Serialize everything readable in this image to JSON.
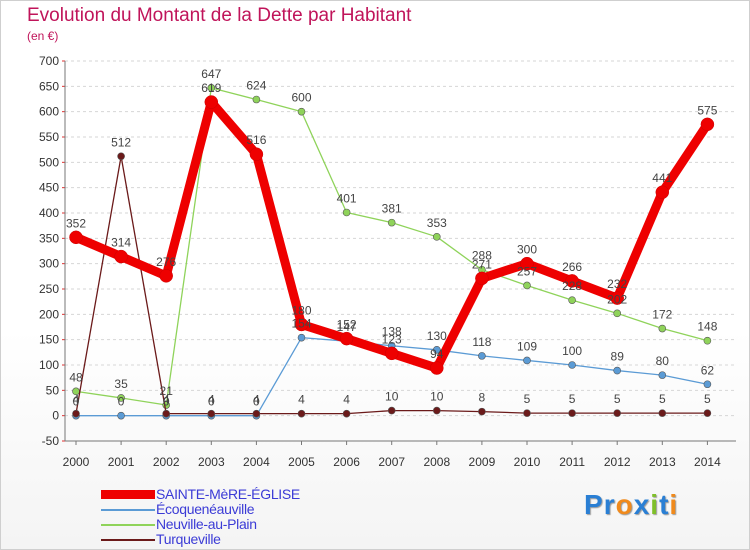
{
  "title": "Evolution du Montant de la Dette par Habitant",
  "subtitle": "(en €)",
  "logo": {
    "text": "Proxiti",
    "letters": [
      "P",
      "r",
      "o",
      "x",
      "i",
      "t",
      "i"
    ],
    "colors": [
      "#2a7fd4",
      "#2a7fd4",
      "#f08a1c",
      "#2a7fd4",
      "#7fbf2a",
      "#2a7fd4",
      "#f08a1c"
    ]
  },
  "chart_data": {
    "type": "line",
    "x": [
      "2000",
      "2001",
      "2002",
      "2003",
      "2004",
      "2005",
      "2006",
      "2007",
      "2008",
      "2009",
      "2010",
      "2011",
      "2012",
      "2013",
      "2014"
    ],
    "ylim": [
      -50,
      700
    ],
    "yticks": [
      -50,
      0,
      50,
      100,
      150,
      200,
      250,
      300,
      350,
      400,
      450,
      500,
      550,
      600,
      650,
      700
    ],
    "grid": "horizontal dashed",
    "legend_position": "bottom-left",
    "series": [
      {
        "name": "SAINTE-MèRE-ÉGLISE",
        "color": "#ee0000",
        "style": "thick",
        "values": [
          352,
          314,
          276,
          619,
          516,
          180,
          152,
          123,
          94,
          271,
          300,
          266,
          232,
          441,
          575
        ],
        "labels": [
          "352",
          "314",
          "276",
          "619",
          "516",
          "180",
          "152",
          "123",
          "94",
          "271",
          "300",
          "266",
          "232",
          "441",
          "575"
        ]
      },
      {
        "name": "Écoquenéauville",
        "color": "#5b9bd5",
        "style": "thin",
        "values": [
          0,
          0,
          0,
          0,
          0,
          154,
          147,
          138,
          130,
          118,
          109,
          100,
          89,
          80,
          62
        ],
        "labels": [
          "0",
          "0",
          "0",
          "0",
          "0",
          "154",
          "147",
          "138",
          "130",
          "118",
          "109",
          "100",
          "89",
          "80",
          "62"
        ]
      },
      {
        "name": "Neuville-au-Plain",
        "color": "#8fd35a",
        "style": "thin",
        "values": [
          48,
          35,
          21,
          647,
          624,
          600,
          401,
          381,
          353,
          288,
          257,
          228,
          202,
          172,
          148
        ],
        "labels": [
          "48",
          "35",
          "21",
          "647",
          "624",
          "600",
          "401",
          "381",
          "353",
          "288",
          "257",
          "228",
          "202",
          "172",
          "148"
        ]
      },
      {
        "name": "Turqueville",
        "color": "#6b1a1a",
        "style": "thin",
        "values": [
          4,
          512,
          4,
          4,
          4,
          4,
          4,
          10,
          10,
          8,
          5,
          5,
          5,
          5,
          5
        ],
        "labels": [
          "4",
          "512",
          "4",
          "4",
          "4",
          "4",
          "4",
          "10",
          "10",
          "8",
          "5",
          "5",
          "5",
          "5",
          "5"
        ]
      }
    ]
  }
}
